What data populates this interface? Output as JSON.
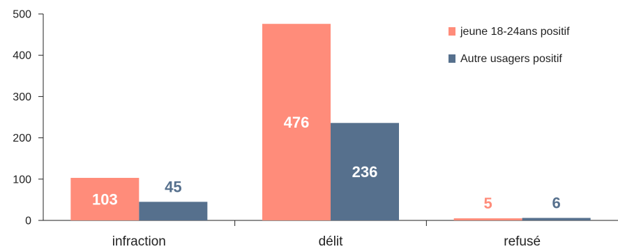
{
  "chart_data": {
    "type": "bar",
    "categories": [
      "infraction",
      "délit",
      "refusé"
    ],
    "series": [
      {
        "name": "jeune 18-24ans positif",
        "values": [
          103,
          476,
          5
        ],
        "color": "#ff8c7a"
      },
      {
        "name": "Autre usagers positif",
        "values": [
          45,
          236,
          6
        ],
        "color": "#56708d"
      }
    ],
    "ylim": [
      0,
      500
    ],
    "yticks": [
      0,
      100,
      200,
      300,
      400,
      500
    ],
    "ytick_labels": [
      "0",
      "100",
      "200",
      "300",
      "400",
      "500"
    ],
    "title": "",
    "xlabel": "",
    "ylabel": "",
    "grid": false,
    "legend_position": "top-right",
    "data_label_colors": {
      "inside": "#ffffff"
    }
  }
}
